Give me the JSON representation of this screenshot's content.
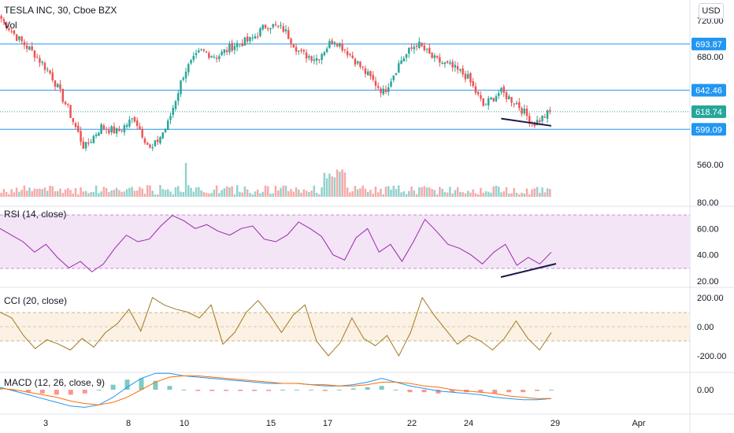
{
  "header": {
    "title": "TESLA INC, 30, Cboe BZX",
    "volume_label": "Vol",
    "currency_button": "USD"
  },
  "colors": {
    "up": "#26a69a",
    "down": "#ef5350",
    "level_line": "#2196f3",
    "rsi_line": "#9c27b0",
    "rsi_band": "#f3e5f5",
    "cci_line": "#a0781e",
    "cci_band": "#fbf1e4",
    "macd_line": "#2196f3",
    "signal_line": "#ff6d00",
    "trendline": "#1a1a4e",
    "last_price": "#26a69a"
  },
  "chart_data": {
    "type": "candlestick",
    "main": {
      "y_ticks": [
        "720.00",
        "680.00",
        "560.00"
      ],
      "price_levels": [
        {
          "value": "693.87",
          "kind": "resistance"
        },
        {
          "value": "642.46",
          "kind": "resistance"
        },
        {
          "value": "618.74",
          "kind": "last-price"
        },
        {
          "value": "599.09",
          "kind": "support"
        }
      ],
      "close_path": [
        {
          "day": "1",
          "price": 722
        },
        {
          "day": "2",
          "price": 700
        },
        {
          "day": "3",
          "price": 683
        },
        {
          "day": "3b",
          "price": 660
        },
        {
          "day": "4",
          "price": 622
        },
        {
          "day": "4b",
          "price": 578
        },
        {
          "day": "5",
          "price": 602
        },
        {
          "day": "5b",
          "price": 596
        },
        {
          "day": "8",
          "price": 612
        },
        {
          "day": "8b",
          "price": 575
        },
        {
          "day": "9",
          "price": 604
        },
        {
          "day": "9b",
          "price": 663
        },
        {
          "day": "10",
          "price": 686
        },
        {
          "day": "10b",
          "price": 680
        },
        {
          "day": "11",
          "price": 693
        },
        {
          "day": "12",
          "price": 698
        },
        {
          "day": "15",
          "price": 716
        },
        {
          "day": "16",
          "price": 710
        },
        {
          "day": "16b",
          "price": 683
        },
        {
          "day": "17",
          "price": 678
        },
        {
          "day": "17b",
          "price": 700
        },
        {
          "day": "18",
          "price": 682
        },
        {
          "day": "19",
          "price": 660
        },
        {
          "day": "19b",
          "price": 640
        },
        {
          "day": "22",
          "price": 675
        },
        {
          "day": "22b",
          "price": 695
        },
        {
          "day": "23",
          "price": 677
        },
        {
          "day": "23b",
          "price": 669
        },
        {
          "day": "24",
          "price": 658
        },
        {
          "day": "24b",
          "price": 625
        },
        {
          "day": "25",
          "price": 641
        },
        {
          "day": "26",
          "price": 628
        },
        {
          "day": "26b",
          "price": 605
        },
        {
          "day": "29",
          "price": 618
        }
      ],
      "price_trendline": {
        "from": {
          "day": "25",
          "price": 611
        },
        "to": {
          "day": "29",
          "price": 603
        }
      }
    },
    "rsi": {
      "label": "RSI (14, close)",
      "y_ticks": [
        "80.00",
        "60.00",
        "40.00",
        "20.00"
      ],
      "overbought": 70,
      "oversold": 30,
      "values": [
        60,
        55,
        50,
        42,
        48,
        38,
        30,
        35,
        27,
        33,
        45,
        55,
        50,
        52,
        62,
        70,
        66,
        60,
        63,
        58,
        55,
        60,
        62,
        52,
        50,
        55,
        65,
        60,
        54,
        40,
        36,
        53,
        60,
        42,
        48,
        35,
        50,
        67,
        58,
        48,
        45,
        40,
        33,
        42,
        48,
        32,
        38,
        33,
        42
      ],
      "trendline": {
        "from": 24,
        "to": 33
      }
    },
    "cci": {
      "label": "CCI (20, close)",
      "y_ticks": [
        "200.00",
        "0.00",
        "-200.00"
      ],
      "upper": 100,
      "lower": -100,
      "values": [
        100,
        60,
        -60,
        -150,
        -90,
        -120,
        -160,
        -80,
        -140,
        -40,
        20,
        120,
        -30,
        200,
        150,
        120,
        100,
        60,
        150,
        -120,
        -40,
        100,
        180,
        80,
        -40,
        80,
        150,
        -100,
        -200,
        -110,
        60,
        -80,
        -130,
        -60,
        -200,
        -40,
        200,
        80,
        -20,
        -120,
        -60,
        -100,
        -160,
        -80,
        40,
        -80,
        -160,
        -40
      ]
    },
    "macd": {
      "label": "MACD (12, 26, close, 9)",
      "y_ticks": [
        "0.00"
      ],
      "macd": [
        2,
        -1,
        -4,
        -7,
        -10,
        -13,
        -14,
        -12,
        -6,
        2,
        9,
        13,
        13,
        11,
        10,
        9,
        8,
        7,
        6,
        5,
        5,
        5,
        4,
        3,
        3,
        4,
        6,
        9,
        6,
        3,
        1,
        -1,
        -2,
        -3,
        -4,
        -6,
        -7,
        -8,
        -8,
        -7
      ],
      "signal": [
        1,
        0,
        -2,
        -4,
        -6,
        -9,
        -11,
        -12,
        -10,
        -6,
        0,
        6,
        10,
        11,
        11,
        10,
        9,
        8,
        7,
        6,
        5,
        5,
        4,
        4,
        3,
        3,
        4,
        6,
        6,
        5,
        3,
        2,
        0,
        -1,
        -2,
        -3,
        -5,
        -6,
        -7,
        -7
      ]
    },
    "x_ticks": [
      {
        "label": "3",
        "x": 58
      },
      {
        "label": "8",
        "x": 163
      },
      {
        "label": "10",
        "x": 234
      },
      {
        "label": "15",
        "x": 344
      },
      {
        "label": "17",
        "x": 416
      },
      {
        "label": "22",
        "x": 523
      },
      {
        "label": "24",
        "x": 595
      },
      {
        "label": "29",
        "x": 705
      },
      {
        "label": "Apr",
        "x": 811
      }
    ]
  }
}
